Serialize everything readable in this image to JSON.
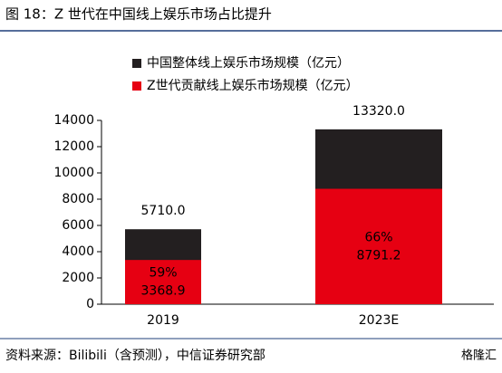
{
  "chart_data": {
    "type": "overlap-bar",
    "title": "图 18：Z 世代在中国线上娱乐市场占比提升",
    "categories": [
      "2019",
      "2023E"
    ],
    "series": [
      {
        "name": "中国整体线上娱乐市场规模（亿元）",
        "color": "#231f20",
        "values": [
          5710,
          13320
        ],
        "value_labels": [
          "5710.0",
          "13320.0"
        ]
      },
      {
        "name": "Z世代贡献线上娱乐市场规模（亿元）",
        "color": "#e60012",
        "values": [
          3368.9,
          8791.2
        ],
        "value_labels": [
          "3368.9",
          "8791.2"
        ]
      }
    ],
    "share": {
      "values": [
        59,
        66
      ],
      "value_labels": [
        "59%",
        "66%"
      ]
    },
    "ylim": [
      0,
      14000
    ],
    "yticks": [
      0,
      2000,
      4000,
      6000,
      8000,
      10000,
      12000,
      14000
    ],
    "grid": false,
    "source": "资料来源：Bilibili（含预测），中信证券研究部",
    "watermark": "格隆汇"
  }
}
